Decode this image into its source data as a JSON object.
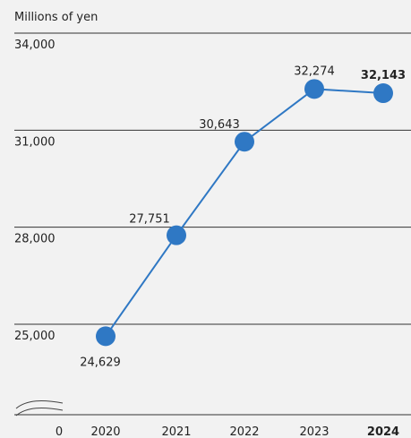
{
  "chart_data": {
    "type": "line",
    "ylabel": "Millions of yen",
    "x_origin_label": "0",
    "categories": [
      "2020",
      "2021",
      "2022",
      "2023",
      "2024"
    ],
    "highlight_category": "2024",
    "y_ticks": [
      {
        "value": 25000,
        "label": "25,000"
      },
      {
        "value": 28000,
        "label": "28,000"
      },
      {
        "value": 31000,
        "label": "31,000"
      },
      {
        "value": 34000,
        "label": "34,000"
      }
    ],
    "ylim": [
      25000,
      34000
    ],
    "axis_break": true,
    "grid": true,
    "series": [
      {
        "values": [
          24629,
          27751,
          30643,
          32274,
          32143
        ],
        "labels": [
          "24,629",
          "27,751",
          "30,643",
          "32,274",
          "32,143"
        ],
        "color": "#2f78c4"
      }
    ]
  }
}
